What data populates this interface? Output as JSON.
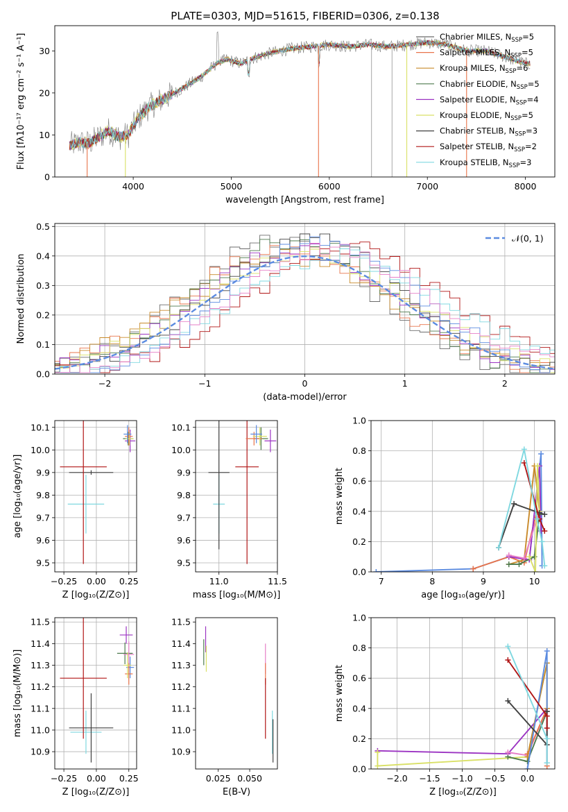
{
  "figure": {
    "title": "PLATE=0303, MJD=51615, FIBERID=0306, z=0.138"
  },
  "colors": {
    "chabrier_miles": "#6b6b6b",
    "salpeter_miles": "#e8734a",
    "kroupa_miles": "#c98a2a",
    "chabrier_elodie": "#4d7a4d",
    "salpeter_elodie": "#9b33c2",
    "kroupa_elodie": "#d9e066",
    "chabrier_stelib": "#404040",
    "salpeter_stelib": "#b01515",
    "kroupa_stelib": "#7fd8e0",
    "blue": "#5b8be0",
    "pink": "#e67fc7",
    "grid": "#b0b0b0"
  },
  "chart_data": [
    {
      "id": "spectrum",
      "type": "line",
      "title": "PLATE=0303, MJD=51615, FIBERID=0306, z=0.138",
      "xlabel": "wavelength [Angstrom, rest frame]",
      "ylabel": "Flux [fλ10⁻¹⁷ erg cm⁻² s⁻¹ A⁻¹]",
      "xlim": [
        3200,
        8300
      ],
      "ylim": [
        0,
        36
      ],
      "xticks": [
        4000,
        5000,
        6000,
        7000,
        8000
      ],
      "yticks": [
        0,
        10,
        20,
        30
      ],
      "grid": false,
      "legend_position": "right",
      "legend": [
        {
          "label": "Chabrier MILES, N",
          "sub": "SSP",
          "eq": "=5",
          "color": "#6b6b6b"
        },
        {
          "label": "Salpeter MILES, N",
          "sub": "SSP",
          "eq": "=5",
          "color": "#e8734a"
        },
        {
          "label": "Kroupa MILES, N",
          "sub": "SSP",
          "eq": "=6",
          "color": "#c98a2a"
        },
        {
          "label": "Chabrier ELODIE, N",
          "sub": "SSP",
          "eq": "=5",
          "color": "#4d7a4d"
        },
        {
          "label": "Salpeter ELODIE, N",
          "sub": "SSP",
          "eq": "=4",
          "color": "#9b33c2"
        },
        {
          "label": "Kroupa ELODIE, N",
          "sub": "SSP",
          "eq": "=5",
          "color": "#d9e066"
        },
        {
          "label": "Chabrier STELIB, N",
          "sub": "SSP",
          "eq": "=3",
          "color": "#404040"
        },
        {
          "label": "Salpeter STELIB, N",
          "sub": "SSP",
          "eq": "=2",
          "color": "#b01515"
        },
        {
          "label": "Kroupa STELIB, N",
          "sub": "SSP",
          "eq": "=3",
          "color": "#7fd8e0"
        }
      ],
      "continuum": [
        [
          3350,
          7.5
        ],
        [
          3450,
          8.2
        ],
        [
          3550,
          8.0
        ],
        [
          3650,
          9.5
        ],
        [
          3750,
          11
        ],
        [
          3850,
          9.5
        ],
        [
          3950,
          10
        ],
        [
          4050,
          14
        ],
        [
          4150,
          16.5
        ],
        [
          4300,
          18.5
        ],
        [
          4500,
          21
        ],
        [
          4700,
          24
        ],
        [
          4850,
          27
        ],
        [
          4950,
          28
        ],
        [
          5100,
          27
        ],
        [
          5250,
          28.5
        ],
        [
          5400,
          29.5
        ],
        [
          5600,
          30.5
        ],
        [
          5800,
          31
        ],
        [
          6000,
          31.5
        ],
        [
          6200,
          31
        ],
        [
          6400,
          31.5
        ],
        [
          6600,
          31
        ],
        [
          6800,
          31.5
        ],
        [
          7000,
          32
        ],
        [
          7200,
          31.5
        ],
        [
          7400,
          30
        ],
        [
          7600,
          30
        ],
        [
          7800,
          28.5
        ],
        [
          8000,
          27
        ]
      ]
    },
    {
      "id": "residuals",
      "type": "step",
      "xlabel": "(data-model)/error",
      "ylabel": "Normed distribution",
      "xlim": [
        -2.5,
        2.5
      ],
      "ylim": [
        0,
        0.51
      ],
      "xticks": [
        -2,
        -1,
        0,
        1,
        2
      ],
      "yticks": [
        0.0,
        0.1,
        0.2,
        0.3,
        0.4,
        0.5
      ],
      "grid": true,
      "legend_position": "upper right",
      "legend": [
        {
          "label": "𝒩(0, 1)",
          "color": "#5b8be0",
          "style": "dashed"
        }
      ]
    },
    {
      "id": "age_vs_Z",
      "type": "errorbar",
      "xlabel": "Z [log₁₀(Z/Z⊙)]",
      "ylabel": "age  [log₁₀(age/yr)]",
      "xlim": [
        -0.32,
        0.31
      ],
      "ylim": [
        9.46,
        10.13
      ],
      "xticks": [
        -0.25,
        0.0,
        0.25
      ],
      "yticks": [
        9.5,
        9.6,
        9.7,
        9.8,
        9.9,
        10.0,
        10.1
      ],
      "grid": true,
      "points": [
        {
          "x": -0.08,
          "y": 9.76,
          "xerr": 0.14,
          "yerr": 0.13,
          "color": "#7fd8e0"
        },
        {
          "x": -0.04,
          "y": 9.9,
          "xerr": 0.17,
          "yerr": 0.01,
          "color": "#404040"
        },
        {
          "x": -0.1,
          "y": 9.925,
          "xerr": 0.18,
          "yerr": 0.43,
          "color": "#b01515"
        },
        {
          "x": 0.245,
          "y": 10.05,
          "xerr": 0.04,
          "yerr": 0.03,
          "color": "#4d7a4d"
        },
        {
          "x": 0.26,
          "y": 10.04,
          "xerr": 0.04,
          "yerr": 0.05,
          "color": "#9b33c2"
        },
        {
          "x": 0.25,
          "y": 10.06,
          "xerr": 0.03,
          "yerr": 0.04,
          "color": "#e8734a"
        },
        {
          "x": 0.255,
          "y": 10.05,
          "xerr": 0.03,
          "yerr": 0.03,
          "color": "#d9e066"
        },
        {
          "x": 0.24,
          "y": 10.07,
          "xerr": 0.03,
          "yerr": 0.04,
          "color": "#5b8be0"
        }
      ]
    },
    {
      "id": "age_vs_mass",
      "type": "errorbar",
      "xlabel": "mass [log₁₀(M/M⊙)]",
      "xlim": [
        10.8,
        11.5
      ],
      "ylim": [
        9.46,
        10.13
      ],
      "xticks": [
        11.0,
        11.5
      ],
      "yticks": [
        9.5,
        9.6,
        9.7,
        9.8,
        9.9,
        10.0,
        10.1
      ],
      "grid": true,
      "points": [
        {
          "x": 11.0,
          "y": 9.76,
          "xerr": 0.05,
          "yerr": 0.13,
          "color": "#7fd8e0"
        },
        {
          "x": 11.0,
          "y": 9.9,
          "xerr": 0.09,
          "yerr": 0.34,
          "color": "#404040"
        },
        {
          "x": 11.24,
          "y": 9.925,
          "xerr": 0.1,
          "yerr": 0.43,
          "color": "#b01515"
        },
        {
          "x": 11.36,
          "y": 10.05,
          "xerr": 0.06,
          "yerr": 0.05,
          "color": "#4d7a4d"
        },
        {
          "x": 11.44,
          "y": 10.04,
          "xerr": 0.05,
          "yerr": 0.05,
          "color": "#9b33c2"
        },
        {
          "x": 11.3,
          "y": 10.05,
          "xerr": 0.07,
          "yerr": 0.03,
          "color": "#e8734a"
        },
        {
          "x": 11.35,
          "y": 10.06,
          "xerr": 0.06,
          "yerr": 0.04,
          "color": "#d9e066"
        },
        {
          "x": 11.32,
          "y": 10.07,
          "xerr": 0.05,
          "yerr": 0.04,
          "color": "#5b8be0"
        }
      ]
    },
    {
      "id": "weight_vs_age",
      "type": "line",
      "xlabel": "age  [log₁₀(age/yr)]",
      "ylabel": "mass weight",
      "xlim": [
        6.8,
        10.4
      ],
      "ylim": [
        0,
        1
      ],
      "xticks": [
        7,
        8,
        9,
        10
      ],
      "yticks": [
        0.0,
        0.2,
        0.4,
        0.6,
        0.8,
        1.0
      ],
      "grid": true,
      "series": [
        {
          "color": "#5b8be0",
          "x": [
            6.9,
            8.8,
            9.5,
            9.9,
            10.13,
            10.15
          ],
          "y": [
            0.0,
            0.02,
            0.1,
            0.08,
            0.78,
            0.04
          ]
        },
        {
          "color": "#e8734a",
          "x": [
            8.8,
            9.5,
            9.8,
            10.05,
            10.1
          ],
          "y": [
            0.02,
            0.1,
            0.06,
            0.4,
            0.4
          ]
        },
        {
          "color": "#c98a2a",
          "x": [
            9.5,
            9.8,
            10.0,
            10.1
          ],
          "y": [
            0.05,
            0.08,
            0.7,
            0.4
          ]
        },
        {
          "color": "#9b33c2",
          "x": [
            9.5,
            9.9,
            10.1,
            10.13
          ],
          "y": [
            0.1,
            0.08,
            0.7,
            0.27
          ]
        },
        {
          "color": "#e67fc7",
          "x": [
            9.5,
            9.8,
            10.1
          ],
          "y": [
            0.11,
            0.09,
            0.4
          ]
        },
        {
          "color": "#4d7a4d",
          "x": [
            9.5,
            9.7,
            10.0,
            10.1
          ],
          "y": [
            0.05,
            0.05,
            0.1,
            0.38
          ]
        },
        {
          "color": "#d9e066",
          "x": [
            9.9,
            10.02,
            10.06,
            10.1
          ],
          "y": [
            0.1,
            0.0,
            0.7,
            0.4
          ]
        },
        {
          "color": "#404040",
          "x": [
            9.3,
            9.6,
            10.1,
            10.2
          ],
          "y": [
            0.16,
            0.45,
            0.39,
            0.38
          ]
        },
        {
          "color": "#b01515",
          "x": [
            9.8,
            10.1,
            10.2
          ],
          "y": [
            0.72,
            0.35,
            0.27
          ]
        },
        {
          "color": "#7fd8e0",
          "x": [
            9.3,
            9.8,
            10.05,
            10.15,
            10.2
          ],
          "y": [
            0.16,
            0.81,
            0.35,
            0.2,
            0.04
          ]
        }
      ]
    },
    {
      "id": "mass_vs_Z",
      "type": "errorbar",
      "xlabel": "Z [log₁₀(Z/Z⊙)]",
      "ylabel": "mass [log₁₀(M/M⊙)]",
      "xlim": [
        -0.32,
        0.31
      ],
      "ylim": [
        10.82,
        11.52
      ],
      "xticks": [
        -0.25,
        0.0,
        0.25
      ],
      "yticks": [
        10.9,
        11.0,
        11.1,
        11.2,
        11.3,
        11.4,
        11.5
      ],
      "grid": true,
      "points": [
        {
          "x": -0.08,
          "y": 10.99,
          "xerr": 0.12,
          "yerr": 0.1,
          "color": "#7fd8e0"
        },
        {
          "x": -0.04,
          "y": 11.01,
          "xerr": 0.17,
          "yerr": 0.16,
          "color": "#404040"
        },
        {
          "x": -0.1,
          "y": 11.24,
          "xerr": 0.18,
          "yerr": 0.28,
          "color": "#b01515"
        },
        {
          "x": 0.23,
          "y": 11.44,
          "xerr": 0.05,
          "yerr": 0.04,
          "color": "#9b33c2"
        },
        {
          "x": 0.22,
          "y": 11.355,
          "xerr": 0.06,
          "yerr": 0.05,
          "color": "#4d7a4d"
        },
        {
          "x": 0.25,
          "y": 11.35,
          "xerr": 0.04,
          "yerr": 0.06,
          "color": "#e67fc7"
        },
        {
          "x": 0.26,
          "y": 11.29,
          "xerr": 0.03,
          "yerr": 0.05,
          "color": "#5b8be0"
        },
        {
          "x": 0.25,
          "y": 11.26,
          "xerr": 0.03,
          "yerr": 0.05,
          "color": "#e8734a"
        },
        {
          "x": 0.24,
          "y": 11.3,
          "xerr": 0.03,
          "yerr": 0.06,
          "color": "#d9e066"
        }
      ]
    },
    {
      "id": "mass_vs_ebv",
      "type": "errorbar",
      "xlabel": "E(B-V)",
      "xlim": [
        0.007,
        0.072
      ],
      "ylim": [
        10.82,
        11.52
      ],
      "xticks": [
        0.025,
        0.05
      ],
      "yticks": [
        10.9,
        11.0,
        11.1,
        11.2,
        11.3,
        11.4,
        11.5
      ],
      "grid": false,
      "points": [
        {
          "x": 0.0135,
          "y": 11.36,
          "xerr": 0,
          "yerr": 0.06,
          "color": "#4d7a4d"
        },
        {
          "x": 0.015,
          "y": 11.42,
          "xerr": 0,
          "yerr": 0.06,
          "color": "#9b33c2"
        },
        {
          "x": 0.0155,
          "y": 11.33,
          "xerr": 0,
          "yerr": 0.06,
          "color": "#d9e066"
        },
        {
          "x": 0.0625,
          "y": 11.33,
          "xerr": 0,
          "yerr": 0.07,
          "color": "#e67fc7"
        },
        {
          "x": 0.0625,
          "y": 11.26,
          "xerr": 0,
          "yerr": 0.05,
          "color": "#e8734a"
        },
        {
          "x": 0.0625,
          "y": 11.1,
          "xerr": 0,
          "yerr": 0.14,
          "color": "#b01515"
        },
        {
          "x": 0.068,
          "y": 10.99,
          "xerr": 0,
          "yerr": 0.1,
          "color": "#7fd8e0"
        },
        {
          "x": 0.0685,
          "y": 10.95,
          "xerr": 0,
          "yerr": 0.1,
          "color": "#404040"
        }
      ]
    },
    {
      "id": "weight_vs_Z",
      "type": "line",
      "xlabel": "Z [log₁₀(Z/Z⊙)]",
      "ylabel": "mass weight",
      "xlim": [
        -2.4,
        0.42
      ],
      "ylim": [
        0,
        1
      ],
      "xticks": [
        -2.0,
        -1.5,
        -1.0,
        -0.5,
        0.0
      ],
      "yticks": [
        0.0,
        0.2,
        0.4,
        0.6,
        0.8,
        1.0
      ],
      "grid": true,
      "series": [
        {
          "color": "#9b33c2",
          "x": [
            -2.3,
            -0.3,
            0.3
          ],
          "y": [
            0.12,
            0.1,
            0.4
          ]
        },
        {
          "color": "#d9e066",
          "x": [
            -2.3,
            -2.3,
            0.0,
            0.3,
            0.3
          ],
          "y": [
            0.11,
            0.02,
            0.08,
            0.7,
            0.4
          ]
        },
        {
          "color": "#4d7a4d",
          "x": [
            -0.3,
            0.0,
            0.3
          ],
          "y": [
            0.08,
            0.05,
            0.38
          ]
        },
        {
          "color": "#e67fc7",
          "x": [
            -0.3,
            0.0,
            0.3
          ],
          "y": [
            0.11,
            0.09,
            0.4
          ]
        },
        {
          "color": "#e8734a",
          "x": [
            0.0,
            0.3,
            0.3
          ],
          "y": [
            0.1,
            0.4,
            0.02
          ]
        },
        {
          "color": "#c98a2a",
          "x": [
            0.0,
            0.3,
            0.3
          ],
          "y": [
            0.08,
            0.7,
            0.4
          ]
        },
        {
          "color": "#5b8be0",
          "x": [
            0.0,
            0.3,
            0.3
          ],
          "y": [
            0.0,
            0.78,
            0.04
          ]
        },
        {
          "color": "#404040",
          "x": [
            -0.3,
            0.3,
            0.3
          ],
          "y": [
            0.45,
            0.16,
            0.38
          ]
        },
        {
          "color": "#b01515",
          "x": [
            -0.3,
            0.3,
            0.3
          ],
          "y": [
            0.72,
            0.35,
            0.27
          ]
        },
        {
          "color": "#7fd8e0",
          "x": [
            -0.3,
            0.3,
            0.3
          ],
          "y": [
            0.81,
            0.2,
            0.04
          ]
        }
      ]
    }
  ]
}
